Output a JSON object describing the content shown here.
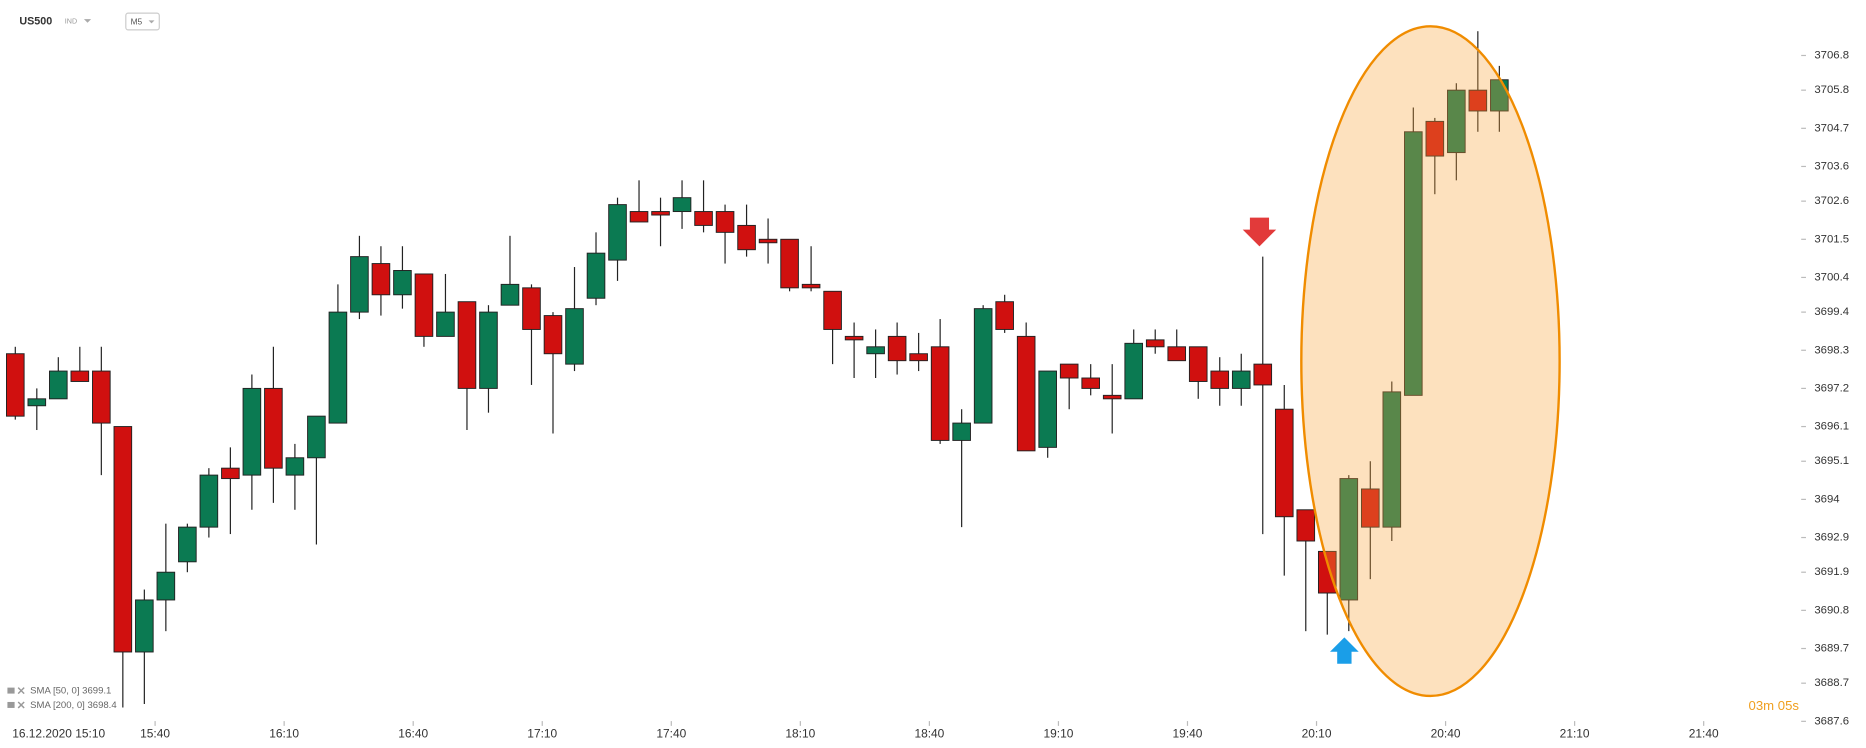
{
  "toolbar": {
    "symbol": "US500",
    "market": "IND",
    "timeframe": "M5"
  },
  "chart_data": {
    "type": "candlestick",
    "start_label": "16.12.2020 15:10",
    "countdown": "03m 05s",
    "indicators": [
      "SMA [50, 0] 3699.1",
      "SMA [200, 0] 3698.4"
    ],
    "up_color": "#0b7a52",
    "down_color": "#d0100f",
    "x": [
      "15:05",
      "15:10",
      "15:15",
      "15:20",
      "15:25",
      "15:30",
      "15:35",
      "15:40",
      "15:45",
      "15:50",
      "15:55",
      "16:00",
      "16:05",
      "16:10",
      "16:15",
      "16:20",
      "16:25",
      "16:30",
      "16:35",
      "16:40",
      "16:45",
      "16:50",
      "16:55",
      "17:00",
      "17:05",
      "17:10",
      "17:15",
      "17:20",
      "17:25",
      "17:30",
      "17:35",
      "17:40",
      "17:45",
      "17:50",
      "17:55",
      "18:00",
      "18:05",
      "18:10",
      "18:15",
      "18:20",
      "18:25",
      "18:30",
      "18:35",
      "18:40",
      "18:45",
      "18:50",
      "18:55",
      "19:00",
      "19:05",
      "19:10",
      "19:15",
      "19:20",
      "19:25",
      "19:30",
      "19:35",
      "19:40",
      "19:45",
      "19:50",
      "19:55",
      "20:00",
      "20:05",
      "20:10",
      "20:15",
      "20:20",
      "20:25",
      "20:30",
      "20:35",
      "20:40",
      "20:45",
      "20:50"
    ],
    "open": [
      3698.2,
      3696.7,
      3696.9,
      3697.7,
      3697.7,
      3696.1,
      3689.6,
      3691.1,
      3692.2,
      3693.2,
      3694.9,
      3694.7,
      3697.2,
      3694.7,
      3695.2,
      3696.2,
      3699.4,
      3700.8,
      3699.9,
      3700.5,
      3698.7,
      3699.7,
      3697.2,
      3699.6,
      3700.1,
      3699.3,
      3697.9,
      3699.8,
      3700.9,
      3702.3,
      3702.3,
      3702.3,
      3702.3,
      3702.3,
      3701.9,
      3701.5,
      3701.5,
      3700.2,
      3700.0,
      3698.7,
      3698.2,
      3698.7,
      3698.2,
      3698.4,
      3695.7,
      3696.2,
      3699.7,
      3698.7,
      3695.5,
      3697.9,
      3697.5,
      3697.0,
      3696.9,
      3698.6,
      3698.4,
      3698.4,
      3697.7,
      3697.2,
      3697.9,
      3696.6,
      3693.7,
      3692.5,
      3691.1,
      3694.3,
      3693.2,
      3697.0,
      3704.9,
      3704.0,
      3705.8,
      3705.2
    ],
    "high": [
      3698.4,
      3697.2,
      3698.1,
      3698.4,
      3698.4,
      3696.1,
      3691.4,
      3693.3,
      3693.3,
      3694.9,
      3695.5,
      3697.6,
      3698.4,
      3695.6,
      3696.4,
      3700.2,
      3701.6,
      3701.3,
      3701.3,
      3700.5,
      3700.5,
      3699.7,
      3699.6,
      3701.6,
      3700.2,
      3699.4,
      3700.7,
      3701.7,
      3702.7,
      3703.2,
      3702.7,
      3703.2,
      3703.2,
      3702.5,
      3702.5,
      3702.1,
      3701.5,
      3701.3,
      3700.0,
      3699.1,
      3698.9,
      3699.1,
      3698.8,
      3699.2,
      3696.6,
      3699.6,
      3699.9,
      3699.1,
      3697.7,
      3697.9,
      3697.9,
      3697.9,
      3698.9,
      3698.9,
      3698.9,
      3698.4,
      3698.1,
      3698.2,
      3701.0,
      3697.3,
      3693.7,
      3692.5,
      3694.7,
      3695.1,
      3697.4,
      3705.3,
      3705.0,
      3706.0,
      3707.5,
      3706.5
    ],
    "low": [
      3696.3,
      3696.0,
      3696.9,
      3697.4,
      3694.7,
      3688.0,
      3688.1,
      3690.2,
      3691.9,
      3692.9,
      3693.0,
      3693.7,
      3693.9,
      3693.7,
      3692.7,
      3696.2,
      3699.2,
      3699.3,
      3699.5,
      3698.4,
      3698.7,
      3696.0,
      3696.5,
      3699.6,
      3697.3,
      3695.9,
      3697.7,
      3699.6,
      3700.3,
      3702.0,
      3701.3,
      3701.8,
      3701.7,
      3700.8,
      3701.0,
      3700.8,
      3700.0,
      3700.0,
      3697.9,
      3697.5,
      3697.5,
      3697.6,
      3697.7,
      3695.6,
      3693.2,
      3696.2,
      3698.8,
      3695.4,
      3695.2,
      3696.6,
      3697.0,
      3695.9,
      3696.9,
      3698.2,
      3698.0,
      3696.9,
      3696.7,
      3696.7,
      3693.0,
      3691.8,
      3690.2,
      3690.1,
      3690.2,
      3691.7,
      3692.8,
      3697.0,
      3702.8,
      3703.2,
      3704.6,
      3704.6
    ],
    "close": [
      3696.4,
      3696.9,
      3697.7,
      3697.4,
      3696.2,
      3689.6,
      3691.1,
      3691.9,
      3693.2,
      3694.7,
      3694.6,
      3697.2,
      3694.9,
      3695.2,
      3696.4,
      3699.4,
      3701.0,
      3699.9,
      3700.6,
      3698.7,
      3699.4,
      3697.2,
      3699.4,
      3700.2,
      3698.9,
      3698.2,
      3699.5,
      3701.1,
      3702.5,
      3702.0,
      3702.2,
      3702.7,
      3701.9,
      3701.7,
      3701.2,
      3701.4,
      3700.1,
      3700.1,
      3698.9,
      3698.6,
      3698.4,
      3698.0,
      3698.0,
      3695.7,
      3696.2,
      3699.5,
      3698.9,
      3695.4,
      3697.7,
      3697.5,
      3697.2,
      3696.9,
      3698.5,
      3698.4,
      3698.0,
      3697.4,
      3697.2,
      3697.7,
      3697.3,
      3693.5,
      3692.8,
      3691.3,
      3694.6,
      3693.2,
      3697.1,
      3704.6,
      3703.9,
      3705.8,
      3705.2,
      3706.1
    ],
    "xlim": [
      "15:04",
      "22:01"
    ],
    "xticks": [
      "15:40",
      "16:10",
      "16:40",
      "17:10",
      "17:40",
      "18:10",
      "18:40",
      "19:10",
      "19:40",
      "20:10",
      "20:40",
      "21:10",
      "21:40"
    ],
    "ylim": [
      3687.6,
      3708.4
    ],
    "yticks": [
      3706.8,
      3705.8,
      3704.7,
      3703.6,
      3702.6,
      3701.5,
      3700.4,
      3699.4,
      3698.3,
      3697.2,
      3696.1,
      3695.1,
      3694.0,
      3692.9,
      3691.9,
      3690.8,
      3689.7,
      3688.7,
      3687.6
    ]
  }
}
